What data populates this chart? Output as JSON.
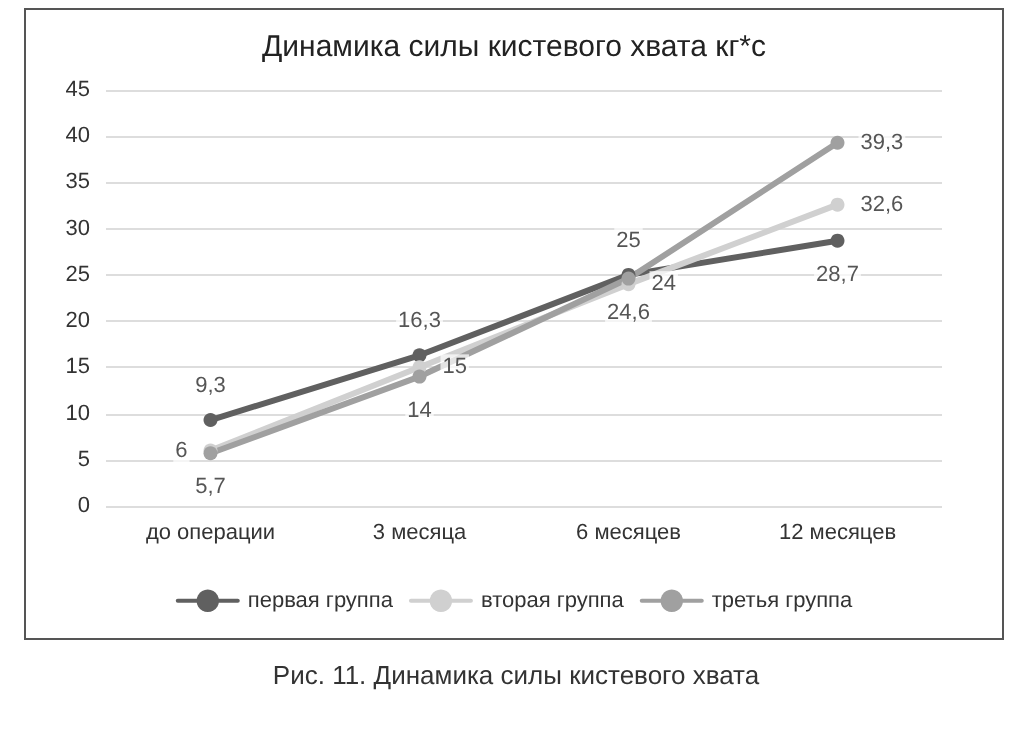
{
  "chart_data": {
    "type": "line",
    "title": "Динамика силы кистевого хвата кг*с",
    "categories": [
      "до операции",
      "3 месяца",
      "6 месяцев",
      "12 месяцев"
    ],
    "series": [
      {
        "name": "первая группа",
        "color": "#606060",
        "values": [
          9.3,
          16.3,
          25,
          28.7
        ],
        "value_labels": [
          "9,3",
          "16,3",
          "25",
          "28,7"
        ]
      },
      {
        "name": "вторая группа",
        "color": "#d0d0d0",
        "values": [
          6,
          15,
          24,
          32.6
        ],
        "value_labels": [
          "6",
          "15",
          "24",
          "32,6"
        ]
      },
      {
        "name": "третья группа",
        "color": "#a0a0a0",
        "values": [
          5.7,
          14,
          24.6,
          39.3
        ],
        "value_labels": [
          "5,7",
          "14",
          "24,6",
          "39,3"
        ]
      }
    ],
    "ylim": [
      0,
      45
    ],
    "yticks": [
      0,
      5,
      10,
      15,
      20,
      25,
      30,
      35,
      40,
      45
    ],
    "grid": "y",
    "legend": "bottom",
    "marker": "circle",
    "line_style": "solid",
    "annotations": [
      "Рис. 11. Динамика силы кистевого хвата"
    ]
  }
}
